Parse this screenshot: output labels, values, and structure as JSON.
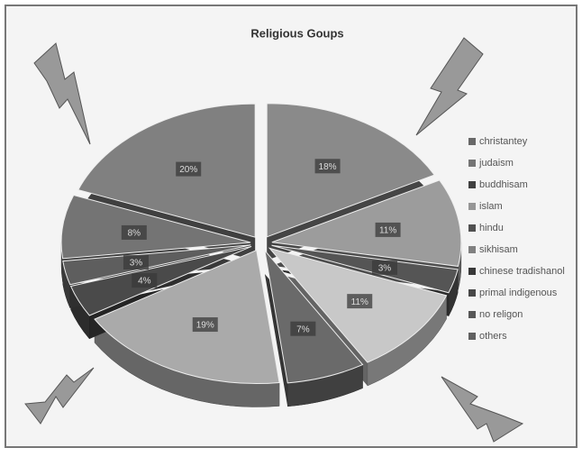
{
  "chart_data": {
    "type": "pie",
    "title": "Religious Goups",
    "categories": [
      "christantey",
      "judaism",
      "buddhisam",
      "islam",
      "hindu",
      "sikhisam",
      "chinese tradishanol",
      "primal indigenous",
      "no religon",
      "others"
    ],
    "values": [
      18,
      11,
      3,
      11,
      7,
      19,
      4,
      3,
      8,
      20
    ],
    "value_labels": [
      "18%",
      "11%",
      "3%",
      "11%",
      "7%",
      "19%",
      "4%",
      "3%",
      "8%",
      "20%"
    ],
    "colors": [
      "#8a8a8a",
      "#9c9c9c",
      "#555555",
      "#c8c8c8",
      "#6a6a6a",
      "#aaaaaa",
      "#4a4a4a",
      "#5e5e5e",
      "#747474",
      "#808080"
    ],
    "legend": "right"
  }
}
